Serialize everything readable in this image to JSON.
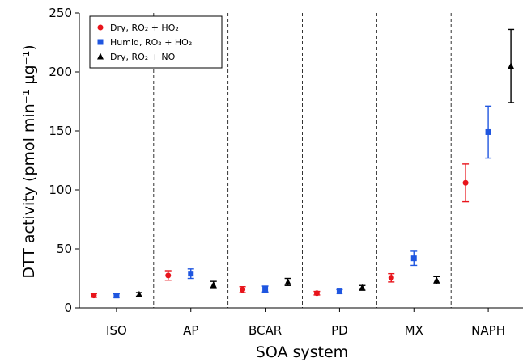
{
  "chart_data": {
    "type": "scatter",
    "xlabel": "SOA system",
    "ylabel": "DTT activity (pmol min⁻¹ µg⁻¹)",
    "categories": [
      "ISO",
      "AP",
      "BCAR",
      "PD",
      "MX",
      "NAPH"
    ],
    "ylim": [
      0,
      250
    ],
    "yticks": [
      0,
      50,
      100,
      150,
      200,
      250
    ],
    "category_separators": "dashed",
    "legend_position": "top-left",
    "series": [
      {
        "name": "Dry, RO₂ + HO₂",
        "color": "#e8141b",
        "marker": "circle",
        "values": [
          10.5,
          27.5,
          15.5,
          12.5,
          25.5,
          106
        ],
        "errors": [
          1.5,
          4,
          2.5,
          1.5,
          3.5,
          16
        ]
      },
      {
        "name": "Humid, RO₂ + HO₂",
        "color": "#1f56e0",
        "marker": "square",
        "values": [
          10.5,
          29,
          16,
          14,
          42,
          149
        ],
        "errors": [
          1.5,
          4,
          2.5,
          1.5,
          6,
          22
        ]
      },
      {
        "name": "Dry, RO₂ + NO",
        "color": "#000000",
        "marker": "triangle",
        "values": [
          11.5,
          19.5,
          22,
          17,
          23.5,
          205
        ],
        "errors": [
          1.5,
          3,
          3,
          2,
          3,
          31
        ]
      }
    ]
  }
}
